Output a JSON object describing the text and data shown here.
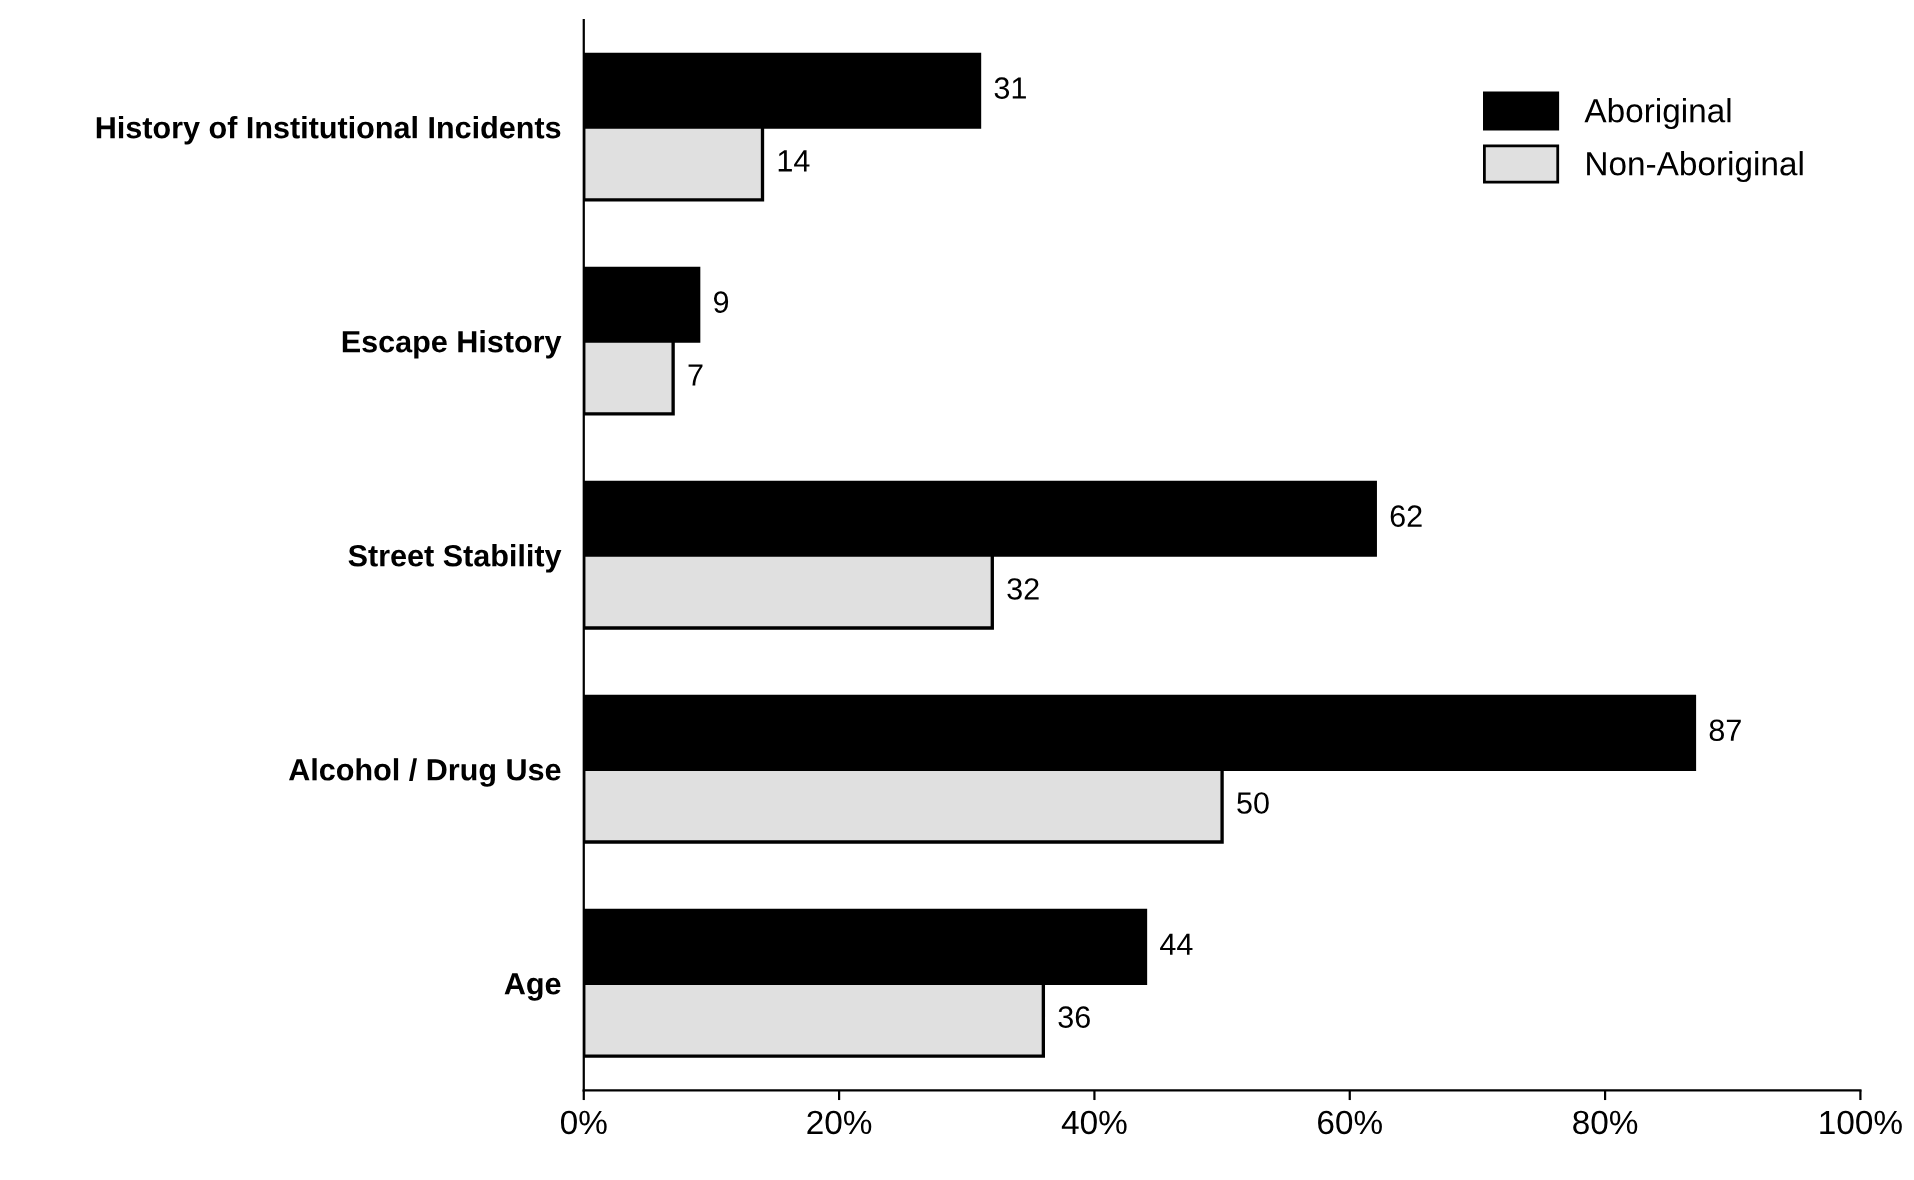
{
  "chart_data": {
    "type": "bar",
    "orientation": "horizontal",
    "categories": [
      "History of Institutional Incidents",
      "Escape History",
      "Street Stability",
      "Alcohol / Drug Use",
      "Age"
    ],
    "series": [
      {
        "name": "Aboriginal",
        "color": "#000000",
        "values": [
          31,
          9,
          62,
          87,
          44
        ]
      },
      {
        "name": "Non-Aboriginal",
        "color": "#e0e0e0",
        "values": [
          14,
          7,
          32,
          50,
          36
        ]
      }
    ],
    "xlim": [
      0,
      100
    ],
    "xticks": [
      {
        "value": 0,
        "label": "0%"
      },
      {
        "value": 20,
        "label": "20%"
      },
      {
        "value": 40,
        "label": "40%"
      },
      {
        "value": 60,
        "label": "60%"
      },
      {
        "value": 80,
        "label": "80%"
      },
      {
        "value": 100,
        "label": "100%"
      }
    ],
    "data_labels": true,
    "legend": "top right",
    "grid": false
  }
}
